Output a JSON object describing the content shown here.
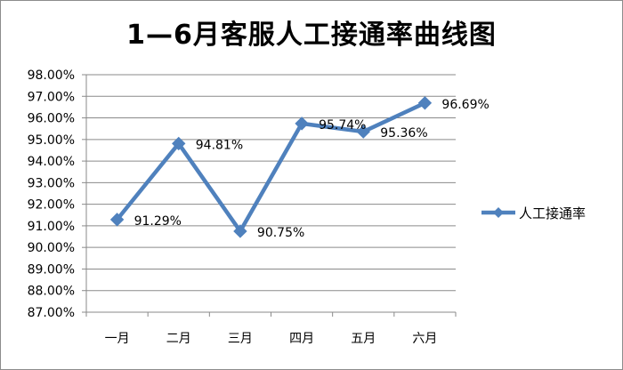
{
  "chart_data": {
    "type": "line",
    "title": "1—6月客服人工接通率曲线图",
    "xlabel": "",
    "ylabel": "",
    "categories": [
      "一月",
      "二月",
      "三月",
      "四月",
      "五月",
      "六月"
    ],
    "ylim": [
      87,
      98
    ],
    "ytick_labels": [
      "98.00%",
      "97.00%",
      "96.00%",
      "95.00%",
      "94.00%",
      "93.00%",
      "92.00%",
      "91.00%",
      "90.00%",
      "89.00%",
      "88.00%",
      "87.00%"
    ],
    "series": [
      {
        "name": "人工接通率",
        "values": [
          91.29,
          94.81,
          90.75,
          95.74,
          95.36,
          96.69
        ],
        "data_labels": [
          "91.29%",
          "94.81%",
          "90.75%",
          "95.74%",
          "95.36%",
          "96.69%"
        ],
        "color": "#4f81bd"
      }
    ],
    "grid": true,
    "legend_position": "right"
  }
}
